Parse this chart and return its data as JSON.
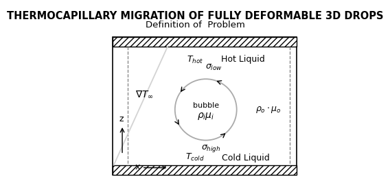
{
  "title": "THERMOCAPILLARY MIGRATION OF FULLY DEFORMABLE 3D DROPS",
  "subtitle": "Definition of  Problem",
  "title_fontsize": 10.5,
  "subtitle_fontsize": 9.5,
  "bg_color": "#ffffff",
  "box_color": "#000000",
  "text_color": "#000000"
}
